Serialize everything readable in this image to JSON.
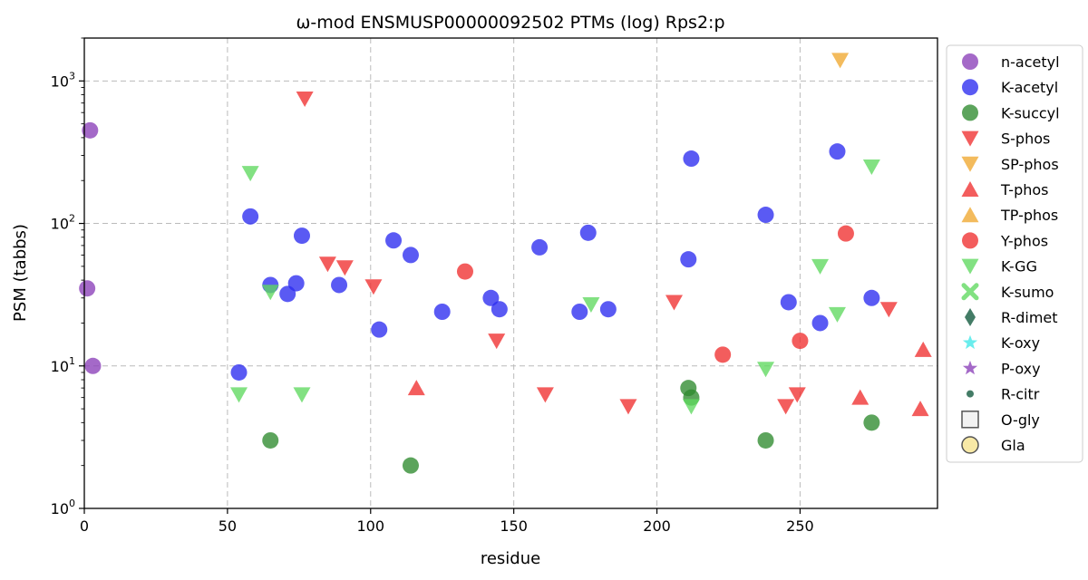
{
  "chart_data": {
    "type": "scatter",
    "title": "ω-mod ENSMUSP00000092502 PTMs (log) Rps2:p",
    "xlabel": "residue",
    "ylabel": "PSM (tabbs)",
    "xlim": [
      0,
      298
    ],
    "ylim": [
      1,
      2000
    ],
    "yscale": "log",
    "xticks": [
      0,
      50,
      100,
      150,
      200,
      250
    ],
    "xtick_labels": [
      "0",
      "50",
      "100",
      "150",
      "200",
      "250"
    ],
    "yticks": [
      1,
      10,
      100,
      1000
    ],
    "ytick_labels": [
      {
        "base": "10",
        "exp": "0"
      },
      {
        "base": "10",
        "exp": "1"
      },
      {
        "base": "10",
        "exp": "2"
      },
      {
        "base": "10",
        "exp": "3"
      }
    ],
    "grid": true,
    "legend_position": "outside-right",
    "series": [
      {
        "name": "n-acetyl",
        "marker": "circle",
        "color": "#8a3fb8",
        "points": [
          [
            2,
            450
          ],
          [
            1,
            35
          ],
          [
            3,
            10
          ]
        ]
      },
      {
        "name": "K-acetyl",
        "marker": "circle",
        "color": "#2b2bf0",
        "points": [
          [
            58,
            112
          ],
          [
            65,
            37
          ],
          [
            71,
            32
          ],
          [
            74,
            38
          ],
          [
            76,
            82
          ],
          [
            89,
            37
          ],
          [
            103,
            18
          ],
          [
            108,
            76
          ],
          [
            114,
            60
          ],
          [
            125,
            24
          ],
          [
            142,
            30
          ],
          [
            145,
            25
          ],
          [
            159,
            68
          ],
          [
            173,
            24
          ],
          [
            176,
            86
          ],
          [
            183,
            25
          ],
          [
            211,
            56
          ],
          [
            212,
            285
          ],
          [
            238,
            115
          ],
          [
            246,
            28
          ],
          [
            257,
            20
          ],
          [
            263,
            320
          ],
          [
            275,
            30
          ],
          [
            54,
            9
          ]
        ]
      },
      {
        "name": "K-succyl",
        "marker": "circle",
        "color": "#2e8b2e",
        "points": [
          [
            65,
            3
          ],
          [
            114,
            2
          ],
          [
            211,
            7
          ],
          [
            212,
            6
          ],
          [
            238,
            3
          ],
          [
            275,
            4
          ]
        ]
      },
      {
        "name": "S-phos",
        "marker": "triangle-down",
        "color": "#f03030",
        "points": [
          [
            77,
            750
          ],
          [
            85,
            52
          ],
          [
            91,
            49
          ],
          [
            101,
            36
          ],
          [
            144,
            15
          ],
          [
            161,
            6.3
          ],
          [
            190,
            5.2
          ],
          [
            206,
            28
          ],
          [
            245,
            5.2
          ],
          [
            249,
            6.3
          ],
          [
            281,
            25
          ]
        ]
      },
      {
        "name": "SP-phos",
        "marker": "triangle-down",
        "color": "#f0a830",
        "points": [
          [
            264,
            1400
          ]
        ]
      },
      {
        "name": "T-phos",
        "marker": "triangle-up",
        "color": "#f03030",
        "points": [
          [
            116,
            7
          ],
          [
            271,
            6
          ],
          [
            292,
            5
          ],
          [
            293,
            13
          ]
        ]
      },
      {
        "name": "TP-phos",
        "marker": "triangle-up",
        "color": "#f0a830",
        "points": []
      },
      {
        "name": "Y-phos",
        "marker": "circle",
        "color": "#f03030",
        "points": [
          [
            133,
            46
          ],
          [
            223,
            12
          ],
          [
            250,
            15
          ],
          [
            266,
            85
          ]
        ]
      },
      {
        "name": "K-GG",
        "marker": "triangle-down",
        "color": "#5fd85f",
        "points": [
          [
            58,
            225
          ],
          [
            65,
            33
          ],
          [
            54,
            6.3
          ],
          [
            76,
            6.3
          ],
          [
            177,
            27
          ],
          [
            212,
            5.2
          ],
          [
            238,
            9.5
          ],
          [
            257,
            50
          ],
          [
            263,
            23
          ],
          [
            275,
            250
          ]
        ]
      },
      {
        "name": "K-sumo",
        "marker": "x",
        "color": "#5fd85f",
        "points": []
      },
      {
        "name": "R-dimet",
        "marker": "diamond",
        "color": "#2f6e55",
        "points": []
      },
      {
        "name": "K-oxy",
        "marker": "star",
        "color": "#40e8e8",
        "points": []
      },
      {
        "name": "P-oxy",
        "marker": "star",
        "color": "#8a3fb8",
        "points": []
      },
      {
        "name": "R-citr",
        "marker": "small-circle",
        "color": "#2f6e55",
        "points": []
      },
      {
        "name": "O-gly",
        "marker": "square-open",
        "color": "#555555",
        "points": []
      },
      {
        "name": "Gla",
        "marker": "circle-open",
        "color": "#555555",
        "points": []
      }
    ]
  }
}
